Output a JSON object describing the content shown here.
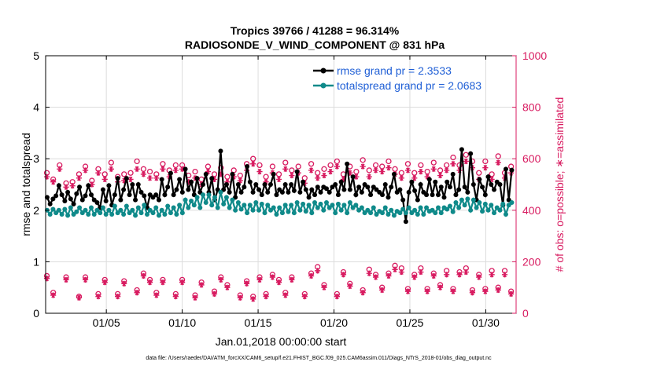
{
  "chart_data": {
    "type": "line",
    "title_line1": "Tropics 39766 / 41288 = 96.314%",
    "title_line2": "RADIOSONDE_V_WIND_COMPONENT @ 831 hPa",
    "xlabel": "Jan.01,2018 00:00:00 start",
    "ylabel_left": "rmse and totalspread",
    "ylabel_right": "# of obs: o=possible; ∗=assimilated",
    "footnote": "data file: /Users/raeder/DAI/ATM_forcXX/CAM6_setup/f.e21.FHIST_BGC.f09_025.CAM6assim.011/Diags_NTrS_2018-01/obs_diag_output.nc",
    "xlim": [
      1,
      32
    ],
    "ylim_left": [
      0,
      5
    ],
    "ylim_right": [
      0,
      1000
    ],
    "x_ticks": [
      5,
      10,
      15,
      20,
      25,
      30
    ],
    "x_tick_labels": [
      "01/05",
      "01/10",
      "01/15",
      "01/20",
      "01/25",
      "01/30"
    ],
    "y_ticks_left": [
      "0",
      "1",
      "2",
      "3",
      "4",
      "5"
    ],
    "y_ticks_right": [
      "0",
      "200",
      "400",
      "600",
      "800",
      "1000"
    ],
    "colors": {
      "rmse": "#000000",
      "spread": "#0f8a8a",
      "obs": "#d81b60",
      "legend_text": "#1f5fd6"
    },
    "series": [
      {
        "name": "rmse grand pr = 2.3533",
        "values": [
          2.25,
          2.12,
          2.22,
          2.28,
          2.48,
          2.3,
          2.18,
          2.35,
          2.22,
          2.12,
          2.32,
          2.45,
          2.2,
          2.28,
          2.48,
          2.3,
          2.2,
          2.15,
          2.05,
          2.4,
          2.18,
          2.48,
          2.1,
          2.3,
          2.62,
          2.2,
          2.4,
          2.62,
          2.3,
          2.5,
          2.2,
          2.5,
          2.35,
          2.28,
          2.05,
          2.3,
          2.25,
          2.3,
          2.2,
          2.6,
          2.3,
          2.45,
          2.72,
          2.3,
          2.4,
          2.6,
          2.35,
          2.8,
          2.4,
          2.55,
          2.3,
          2.62,
          2.35,
          2.5,
          2.7,
          2.35,
          2.62,
          2.2,
          2.4,
          3.15,
          2.4,
          2.5,
          2.35,
          2.7,
          2.25,
          2.5,
          2.35,
          2.45,
          2.85,
          2.55,
          2.35,
          2.5,
          2.4,
          2.3,
          2.5,
          2.35,
          2.5,
          2.7,
          2.3,
          2.4,
          2.35,
          2.5,
          2.35,
          2.5,
          2.38,
          2.75,
          2.35,
          2.55,
          2.4,
          2.25,
          2.4,
          2.3,
          2.45,
          2.35,
          2.45,
          2.42,
          2.35,
          2.45,
          2.5,
          2.3,
          2.55,
          2.4,
          2.9,
          2.4,
          2.65,
          2.3,
          2.45,
          2.35,
          2.5,
          2.45,
          2.3,
          2.45,
          2.4,
          2.35,
          2.3,
          2.5,
          2.25,
          2.45,
          2.7,
          2.35,
          2.4,
          2.2,
          1.78,
          2.35,
          2.55,
          2.38,
          2.2,
          2.5,
          2.35,
          2.3,
          2.6,
          2.3,
          2.55,
          2.3,
          2.45,
          2.25,
          2.55,
          2.45,
          2.7,
          2.3,
          2.4,
          3.18,
          2.45,
          2.35,
          3.1,
          2.5,
          2.2,
          2.6,
          2.45,
          2.3,
          2.65,
          2.5,
          2.4,
          2.55,
          2.5,
          2.1,
          2.8,
          2.2,
          2.78
        ],
        "color": "#000000"
      },
      {
        "name": "totalspread grand pr = 2.0683",
        "values": [
          2.0,
          1.92,
          2.02,
          1.95,
          2.0,
          1.92,
          2.02,
          1.9,
          2.05,
          1.92,
          1.97,
          2.05,
          1.95,
          2.0,
          1.92,
          2.05,
          1.92,
          2.0,
          1.95,
          2.05,
          1.92,
          2.0,
          1.92,
          2.08,
          1.95,
          2.0,
          1.92,
          2.08,
          1.95,
          2.0,
          1.9,
          2.05,
          1.95,
          2.1,
          1.92,
          2.0,
          1.95,
          2.05,
          1.9,
          2.0,
          1.92,
          2.08,
          1.95,
          2.05,
          1.92,
          2.1,
          1.95,
          2.2,
          2.05,
          2.18,
          2.1,
          2.25,
          2.05,
          2.3,
          2.15,
          2.3,
          2.1,
          2.25,
          2.05,
          2.35,
          2.12,
          2.25,
          2.05,
          2.2,
          2.0,
          2.15,
          2.02,
          2.1,
          1.95,
          2.1,
          2.0,
          2.15,
          2.0,
          2.12,
          1.95,
          2.1,
          2.0,
          2.05,
          1.92,
          2.05,
          1.95,
          2.1,
          1.97,
          2.1,
          1.95,
          2.15,
          2.0,
          2.12,
          1.98,
          2.1,
          1.95,
          2.15,
          2.05,
          2.12,
          2.0,
          2.15,
          2.05,
          2.1,
          1.95,
          2.12,
          2.0,
          2.1,
          1.95,
          2.15,
          2.05,
          2.1,
          2.0,
          2.05,
          1.95,
          2.0,
          1.95,
          2.05,
          1.92,
          1.98,
          1.95,
          2.05,
          1.92,
          2.0,
          1.9,
          1.98,
          1.95,
          2.02,
          1.95,
          2.05,
          1.95,
          2.0,
          1.92,
          2.05,
          1.92,
          2.05,
          1.98,
          2.0,
          1.95,
          2.05,
          1.95,
          2.05,
          2.02,
          2.08,
          1.97,
          2.15,
          2.05,
          2.2,
          2.1,
          2.22,
          2.0,
          2.2,
          2.05,
          2.15,
          1.98,
          2.12,
          2.0,
          2.1,
          1.95,
          2.05,
          2.0,
          2.12,
          1.92,
          2.1,
          2.15
        ],
        "color": "#0f8a8a"
      }
    ],
    "obs_possible_high": [
      [
        1.08,
        545
      ],
      [
        1.5,
        520
      ],
      [
        1.92,
        575
      ],
      [
        2.35,
        505
      ],
      [
        2.77,
        510
      ],
      [
        3.2,
        540
      ],
      [
        3.62,
        570
      ],
      [
        4.05,
        515
      ],
      [
        4.47,
        560
      ],
      [
        4.9,
        540
      ],
      [
        5.32,
        585
      ],
      [
        5.75,
        530
      ],
      [
        6.17,
        540
      ],
      [
        6.6,
        545
      ],
      [
        7.02,
        590
      ],
      [
        7.45,
        560
      ],
      [
        7.87,
        550
      ],
      [
        8.3,
        540
      ],
      [
        8.72,
        580
      ],
      [
        9.15,
        555
      ],
      [
        9.57,
        575
      ],
      [
        10.0,
        575
      ],
      [
        10.42,
        535
      ],
      [
        10.85,
        550
      ],
      [
        11.27,
        520
      ],
      [
        11.7,
        570
      ],
      [
        12.12,
        540
      ],
      [
        12.55,
        565
      ],
      [
        12.97,
        530
      ],
      [
        13.4,
        555
      ],
      [
        13.82,
        535
      ],
      [
        14.25,
        580
      ],
      [
        14.67,
        600
      ],
      [
        15.1,
        575
      ],
      [
        15.52,
        530
      ],
      [
        15.95,
        570
      ],
      [
        16.37,
        540
      ],
      [
        16.8,
        585
      ],
      [
        17.22,
        555
      ],
      [
        17.65,
        570
      ],
      [
        18.07,
        525
      ],
      [
        18.5,
        580
      ],
      [
        18.92,
        545
      ],
      [
        19.35,
        560
      ],
      [
        19.77,
        575
      ],
      [
        20.2,
        590
      ],
      [
        20.62,
        540
      ],
      [
        21.05,
        570
      ],
      [
        21.47,
        550
      ],
      [
        21.9,
        595
      ],
      [
        22.32,
        555
      ],
      [
        22.75,
        575
      ],
      [
        23.17,
        570
      ],
      [
        23.6,
        590
      ],
      [
        24.02,
        560
      ],
      [
        24.45,
        545
      ],
      [
        24.87,
        580
      ],
      [
        25.3,
        545
      ],
      [
        25.72,
        575
      ],
      [
        26.15,
        550
      ],
      [
        26.57,
        585
      ],
      [
        27.0,
        555
      ],
      [
        27.42,
        575
      ],
      [
        27.85,
        605
      ],
      [
        28.27,
        575
      ],
      [
        28.7,
        615
      ],
      [
        29.12,
        590
      ],
      [
        29.55,
        545
      ],
      [
        29.97,
        590
      ],
      [
        30.4,
        540
      ],
      [
        30.82,
        610
      ],
      [
        31.25,
        545
      ],
      [
        31.67,
        570
      ]
    ],
    "obs_assim_high": [
      [
        1.08,
        530
      ],
      [
        1.5,
        510
      ],
      [
        1.92,
        560
      ],
      [
        2.35,
        490
      ],
      [
        2.77,
        495
      ],
      [
        3.2,
        525
      ],
      [
        3.62,
        555
      ],
      [
        4.05,
        500
      ],
      [
        4.47,
        545
      ],
      [
        4.9,
        520
      ],
      [
        5.32,
        560
      ],
      [
        5.75,
        510
      ],
      [
        6.17,
        515
      ],
      [
        6.6,
        520
      ],
      [
        7.02,
        560
      ],
      [
        7.45,
        540
      ],
      [
        7.87,
        525
      ],
      [
        8.3,
        525
      ],
      [
        8.72,
        560
      ],
      [
        9.15,
        530
      ],
      [
        9.57,
        555
      ],
      [
        10.0,
        560
      ],
      [
        10.42,
        510
      ],
      [
        10.85,
        525
      ],
      [
        11.27,
        500
      ],
      [
        11.7,
        550
      ],
      [
        12.12,
        520
      ],
      [
        12.55,
        540
      ],
      [
        12.97,
        510
      ],
      [
        13.4,
        530
      ],
      [
        13.82,
        515
      ],
      [
        14.25,
        555
      ],
      [
        14.67,
        580
      ],
      [
        15.1,
        550
      ],
      [
        15.52,
        510
      ],
      [
        15.95,
        545
      ],
      [
        16.37,
        520
      ],
      [
        16.8,
        560
      ],
      [
        17.22,
        535
      ],
      [
        17.65,
        545
      ],
      [
        18.07,
        505
      ],
      [
        18.5,
        555
      ],
      [
        18.92,
        525
      ],
      [
        19.35,
        535
      ],
      [
        19.77,
        550
      ],
      [
        20.2,
        570
      ],
      [
        20.62,
        520
      ],
      [
        21.05,
        545
      ],
      [
        21.47,
        530
      ],
      [
        21.9,
        570
      ],
      [
        22.32,
        530
      ],
      [
        22.75,
        555
      ],
      [
        23.17,
        550
      ],
      [
        23.6,
        565
      ],
      [
        24.02,
        540
      ],
      [
        24.45,
        525
      ],
      [
        24.87,
        555
      ],
      [
        25.3,
        525
      ],
      [
        25.72,
        550
      ],
      [
        26.15,
        530
      ],
      [
        26.57,
        560
      ],
      [
        27.0,
        535
      ],
      [
        27.42,
        555
      ],
      [
        27.85,
        580
      ],
      [
        28.27,
        555
      ],
      [
        28.7,
        590
      ],
      [
        29.12,
        565
      ],
      [
        29.55,
        520
      ],
      [
        29.97,
        565
      ],
      [
        30.4,
        520
      ],
      [
        30.82,
        585
      ],
      [
        31.25,
        525
      ],
      [
        31.67,
        545
      ]
    ],
    "obs_possible_low": [
      [
        1.08,
        145
      ],
      [
        1.5,
        80
      ],
      [
        2.35,
        140
      ],
      [
        3.2,
        65
      ],
      [
        3.62,
        140
      ],
      [
        4.47,
        75
      ],
      [
        4.9,
        130
      ],
      [
        5.75,
        75
      ],
      [
        6.17,
        125
      ],
      [
        7.02,
        90
      ],
      [
        7.45,
        155
      ],
      [
        7.87,
        130
      ],
      [
        8.3,
        80
      ],
      [
        8.72,
        130
      ],
      [
        9.57,
        75
      ],
      [
        10.0,
        130
      ],
      [
        10.85,
        70
      ],
      [
        11.27,
        120
      ],
      [
        12.12,
        85
      ],
      [
        12.55,
        140
      ],
      [
        12.97,
        110
      ],
      [
        13.82,
        70
      ],
      [
        14.25,
        125
      ],
      [
        14.67,
        65
      ],
      [
        15.1,
        140
      ],
      [
        15.52,
        75
      ],
      [
        15.95,
        150
      ],
      [
        16.37,
        130
      ],
      [
        16.8,
        80
      ],
      [
        17.22,
        140
      ],
      [
        18.07,
        75
      ],
      [
        18.5,
        155
      ],
      [
        18.92,
        180
      ],
      [
        19.35,
        110
      ],
      [
        20.2,
        75
      ],
      [
        20.62,
        160
      ],
      [
        21.05,
        115
      ],
      [
        21.9,
        90
      ],
      [
        22.32,
        170
      ],
      [
        22.75,
        150
      ],
      [
        23.17,
        100
      ],
      [
        23.6,
        155
      ],
      [
        24.02,
        185
      ],
      [
        24.45,
        175
      ],
      [
        24.87,
        95
      ],
      [
        25.3,
        150
      ],
      [
        25.72,
        175
      ],
      [
        26.15,
        95
      ],
      [
        26.57,
        155
      ],
      [
        27.0,
        110
      ],
      [
        27.42,
        165
      ],
      [
        27.85,
        95
      ],
      [
        28.27,
        160
      ],
      [
        28.7,
        175
      ],
      [
        29.12,
        90
      ],
      [
        29.55,
        150
      ],
      [
        29.97,
        95
      ],
      [
        30.4,
        165
      ],
      [
        30.82,
        100
      ],
      [
        31.25,
        165
      ],
      [
        31.67,
        85
      ]
    ],
    "obs_assim_low": [
      [
        1.08,
        135
      ],
      [
        1.5,
        70
      ],
      [
        2.35,
        130
      ],
      [
        3.2,
        60
      ],
      [
        3.62,
        130
      ],
      [
        4.47,
        65
      ],
      [
        4.9,
        120
      ],
      [
        5.75,
        65
      ],
      [
        6.17,
        115
      ],
      [
        7.02,
        80
      ],
      [
        7.45,
        145
      ],
      [
        7.87,
        120
      ],
      [
        8.3,
        70
      ],
      [
        8.72,
        120
      ],
      [
        9.57,
        65
      ],
      [
        10.0,
        120
      ],
      [
        10.85,
        60
      ],
      [
        11.27,
        110
      ],
      [
        12.12,
        75
      ],
      [
        12.55,
        130
      ],
      [
        12.97,
        100
      ],
      [
        13.82,
        60
      ],
      [
        14.25,
        115
      ],
      [
        14.67,
        55
      ],
      [
        15.1,
        130
      ],
      [
        15.52,
        65
      ],
      [
        15.95,
        140
      ],
      [
        16.37,
        120
      ],
      [
        16.8,
        70
      ],
      [
        17.22,
        130
      ],
      [
        18.07,
        65
      ],
      [
        18.5,
        145
      ],
      [
        18.92,
        165
      ],
      [
        19.35,
        100
      ],
      [
        20.2,
        65
      ],
      [
        20.62,
        150
      ],
      [
        21.05,
        105
      ],
      [
        21.9,
        80
      ],
      [
        22.32,
        155
      ],
      [
        22.75,
        140
      ],
      [
        23.17,
        90
      ],
      [
        23.6,
        145
      ],
      [
        24.02,
        170
      ],
      [
        24.45,
        160
      ],
      [
        24.87,
        85
      ],
      [
        25.3,
        140
      ],
      [
        25.72,
        160
      ],
      [
        26.15,
        85
      ],
      [
        26.57,
        145
      ],
      [
        27.0,
        100
      ],
      [
        27.42,
        150
      ],
      [
        27.85,
        85
      ],
      [
        28.27,
        150
      ],
      [
        28.7,
        160
      ],
      [
        29.12,
        80
      ],
      [
        29.55,
        140
      ],
      [
        29.97,
        85
      ],
      [
        30.4,
        150
      ],
      [
        30.82,
        90
      ],
      [
        31.25,
        150
      ],
      [
        31.67,
        75
      ]
    ]
  }
}
